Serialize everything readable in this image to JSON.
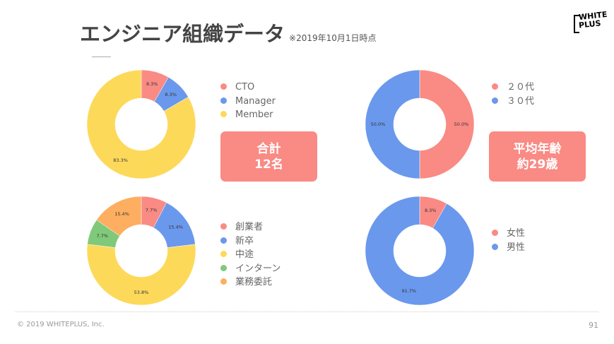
{
  "header": {
    "title": "エンジニア組織データ",
    "subtitle": "※2019年10月1日時点",
    "logo_text": [
      "WHITE",
      "PLUS"
    ]
  },
  "colors": {
    "red": "#fa8a84",
    "blue": "#6a98ec",
    "yellow": "#fdd95a",
    "green": "#80c97a",
    "orange": "#fdae60"
  },
  "chart_data": [
    {
      "type": "pie",
      "title": "role",
      "categories": [
        "CTO",
        "Manager",
        "Member"
      ],
      "values": [
        8.3,
        8.3,
        83.3
      ],
      "labels": [
        "8.3%",
        "8.3%",
        "83.3%"
      ],
      "colors": [
        "#fa8a84",
        "#6a98ec",
        "#fdd95a"
      ],
      "legend": "right"
    },
    {
      "type": "pie",
      "title": "age",
      "categories": [
        "２０代",
        "３０代"
      ],
      "values": [
        50.0,
        50.0
      ],
      "labels": [
        "50.0%",
        "50.0%"
      ],
      "colors": [
        "#fa8a84",
        "#6a98ec"
      ],
      "legend": "right"
    },
    {
      "type": "pie",
      "title": "source",
      "categories": [
        "創業者",
        "新卒",
        "中途",
        "インターン",
        "業務委託"
      ],
      "values": [
        7.7,
        15.4,
        53.8,
        7.7,
        15.4
      ],
      "labels": [
        "7.7%",
        "15.4%",
        "53.8%",
        "7.7%",
        "15.4%"
      ],
      "colors": [
        "#fa8a84",
        "#6a98ec",
        "#fdd95a",
        "#80c97a",
        "#fdae60"
      ],
      "legend": "right"
    },
    {
      "type": "pie",
      "title": "gender",
      "categories": [
        "女性",
        "男性"
      ],
      "values": [
        8.3,
        91.7
      ],
      "labels": [
        "8.3%",
        "91.7%"
      ],
      "colors": [
        "#fa8a84",
        "#6a98ec"
      ],
      "legend": "right"
    }
  ],
  "boxes": [
    {
      "line1": "合計",
      "line2": "12名"
    },
    {
      "line1": "平均年齢",
      "line2": "約29歳"
    }
  ],
  "footer": {
    "copyright": "© 2019 WHITEPLUS, Inc.",
    "page": "91"
  }
}
